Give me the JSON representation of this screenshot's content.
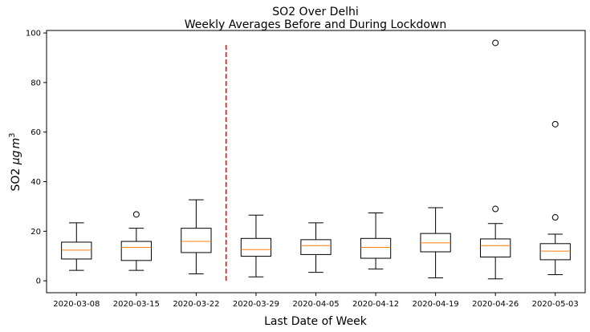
{
  "chart_data": {
    "type": "box",
    "title": "SO2 Over Delhi",
    "subtitle": "Weekly Averages Before and During Lockdown",
    "xlabel": "Last Date of Week",
    "ylabel_main": "SO2 ",
    "ylabel_unit_mu": "μ",
    "ylabel_unit_g": "g",
    "ylabel_unit_m": "m",
    "ylabel_unit_exp": "3",
    "ylim": [
      -4.8,
      101
    ],
    "yticks": [
      0,
      20,
      40,
      60,
      80,
      100
    ],
    "categories": [
      "2020-03-08",
      "2020-03-15",
      "2020-03-22",
      "2020-03-29",
      "2020-04-05",
      "2020-04-12",
      "2020-04-19",
      "2020-04-26",
      "2020-05-03"
    ],
    "boxes": [
      {
        "whisker_low": 4.2,
        "q1": 8.8,
        "median": 12.4,
        "q3": 15.6,
        "whisker_high": 23.4,
        "outliers": []
      },
      {
        "whisker_low": 4.2,
        "q1": 8.2,
        "median": 13.5,
        "q3": 15.9,
        "whisker_high": 21.2,
        "outliers": [
          26.8
        ]
      },
      {
        "whisker_low": 2.8,
        "q1": 11.4,
        "median": 15.9,
        "q3": 21.2,
        "whisker_high": 32.7,
        "outliers": []
      },
      {
        "whisker_low": 1.6,
        "q1": 9.9,
        "median": 12.6,
        "q3": 17.1,
        "whisker_high": 26.5,
        "outliers": []
      },
      {
        "whisker_low": 3.4,
        "q1": 10.6,
        "median": 14.2,
        "q3": 16.6,
        "whisker_high": 23.4,
        "outliers": []
      },
      {
        "whisker_low": 4.8,
        "q1": 9.1,
        "median": 13.5,
        "q3": 17.1,
        "whisker_high": 27.4,
        "outliers": []
      },
      {
        "whisker_low": 1.2,
        "q1": 11.7,
        "median": 15.3,
        "q3": 19.1,
        "whisker_high": 29.5,
        "outliers": []
      },
      {
        "whisker_low": 0.8,
        "q1": 9.6,
        "median": 14.2,
        "q3": 16.9,
        "whisker_high": 23.1,
        "outliers": [
          29.0,
          96.0
        ]
      },
      {
        "whisker_low": 2.5,
        "q1": 8.5,
        "median": 12.0,
        "q3": 15.0,
        "whisker_high": 18.8,
        "outliers": [
          25.6,
          63.2
        ]
      }
    ],
    "lockdown_line": {
      "x_position_between": [
        2,
        3
      ],
      "y_from": 0,
      "y_to": 96,
      "style": "dashed",
      "color": "#ff0000"
    },
    "colors": {
      "box": "#000000",
      "median": "#ff7f0e",
      "marker_edge": "#000000",
      "background": "#ffffff"
    },
    "grid": false,
    "legend": "none"
  }
}
